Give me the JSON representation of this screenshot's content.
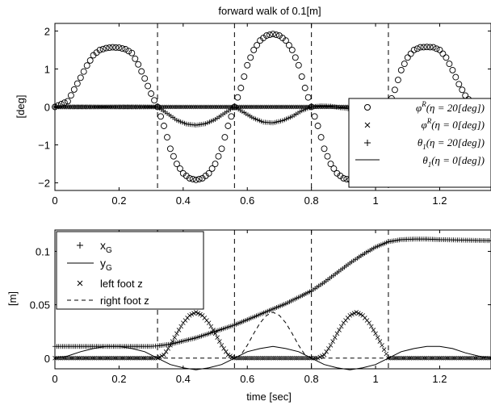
{
  "chart_data": [
    {
      "type": "scatter",
      "title": "forward walk of 0.1[m]",
      "xlabel": "",
      "ylabel": "[deg]",
      "xlim": [
        0,
        1.36
      ],
      "ylim": [
        -2.2,
        2.2
      ],
      "x_ticks": [
        "0",
        "0.2",
        "0.4",
        "0.6",
        "0.8",
        "1",
        "1.2"
      ],
      "x_tick_values": [
        0,
        0.2,
        0.4,
        0.6,
        0.8,
        1.0,
        1.2
      ],
      "y_ticks": [
        "2",
        "1",
        "0",
        "−1",
        "−2"
      ],
      "y_tick_values": [
        2,
        1,
        0,
        -1,
        -2
      ],
      "vlines": [
        0.32,
        0.56,
        0.8,
        1.04
      ],
      "legend_position": "lower-right",
      "series": [
        {
          "name": "φR(η = 20[deg])",
          "marker": "circle",
          "x": [
            0.0,
            0.04,
            0.08,
            0.1,
            0.12,
            0.14,
            0.16,
            0.18,
            0.2,
            0.22,
            0.24,
            0.26,
            0.28,
            0.3,
            0.32,
            0.34,
            0.36,
            0.38,
            0.4,
            0.42,
            0.44,
            0.46,
            0.48,
            0.5,
            0.52,
            0.54,
            0.56,
            0.58,
            0.6,
            0.62,
            0.64,
            0.66,
            0.68,
            0.7,
            0.72,
            0.74,
            0.76,
            0.78,
            0.8,
            0.82,
            0.84,
            0.86,
            0.88,
            0.9,
            0.92,
            0.94,
            0.96,
            0.98,
            1.0,
            1.02,
            1.04,
            1.06,
            1.08,
            1.1,
            1.12,
            1.14,
            1.16,
            1.18,
            1.2,
            1.22,
            1.24,
            1.26,
            1.28,
            1.3,
            1.32,
            1.34
          ],
          "y": [
            0.0,
            0.15,
            0.77,
            1.09,
            1.36,
            1.5,
            1.55,
            1.57,
            1.56,
            1.52,
            1.42,
            1.12,
            0.75,
            0.35,
            0.0,
            -0.5,
            -1.1,
            -1.5,
            -1.75,
            -1.88,
            -1.92,
            -1.88,
            -1.75,
            -1.5,
            -1.1,
            -0.5,
            0.0,
            0.5,
            1.1,
            1.5,
            1.75,
            1.88,
            1.92,
            1.88,
            1.75,
            1.5,
            1.1,
            0.5,
            0.0,
            -0.5,
            -1.1,
            -1.5,
            -1.75,
            -1.88,
            -1.92,
            -1.88,
            -1.75,
            -1.5,
            -1.1,
            -0.5,
            0.0,
            0.45,
            0.97,
            1.3,
            1.5,
            1.57,
            1.58,
            1.57,
            1.5,
            1.3,
            0.97,
            0.6,
            0.3,
            0.1,
            0.02,
            0.0
          ]
        },
        {
          "name": "φR(η = 0[deg])",
          "marker": "x",
          "x": [
            0.0,
            0.34
          ],
          "y": [
            0.0,
            0.0
          ]
        },
        {
          "name": "θ1(η = 20[deg])",
          "marker": "plus",
          "x": [
            0.0,
            0.05,
            0.1,
            0.15,
            0.2,
            0.25,
            0.3,
            0.32,
            0.35,
            0.38,
            0.41,
            0.44,
            0.47,
            0.5,
            0.53,
            0.56,
            0.59,
            0.62,
            0.65,
            0.68,
            0.71,
            0.74,
            0.77,
            0.8,
            0.83,
            0.86,
            0.89,
            0.92,
            0.95,
            0.98,
            1.01,
            1.04,
            1.1,
            1.2,
            1.3,
            1.36
          ],
          "y": [
            0.0,
            0.0,
            0.0,
            0.0,
            0.0,
            0.0,
            0.0,
            0.0,
            -0.17,
            -0.35,
            -0.45,
            -0.48,
            -0.44,
            -0.33,
            -0.16,
            0.0,
            -0.15,
            -0.3,
            -0.4,
            -0.42,
            -0.36,
            -0.25,
            -0.1,
            0.0,
            0.03,
            0.02,
            -0.02,
            -0.05,
            -0.03,
            0.0,
            0.01,
            0.0,
            0.0,
            0.0,
            0.0,
            0.0
          ]
        },
        {
          "name": "θ1(η = 0[deg])",
          "marker": "line",
          "x": [
            0.0,
            1.36
          ],
          "y": [
            0.0,
            0.0
          ]
        }
      ]
    },
    {
      "type": "scatter",
      "title": "",
      "xlabel": "time [sec]",
      "ylabel": "[m]",
      "xlim": [
        0,
        1.36
      ],
      "ylim": [
        -0.01,
        0.12
      ],
      "x_ticks": [
        "0",
        "0.2",
        "0.4",
        "0.6",
        "0.8",
        "1",
        "1.2"
      ],
      "x_tick_values": [
        0,
        0.2,
        0.4,
        0.6,
        0.8,
        1.0,
        1.2
      ],
      "y_ticks": [
        "0.1",
        "0.05",
        "0"
      ],
      "y_tick_values": [
        0.1,
        0.05,
        0
      ],
      "vlines": [
        0.32,
        0.56,
        0.8,
        1.04
      ],
      "legend_position": "upper-left",
      "series": [
        {
          "name": "x",
          "name_subscript": "G",
          "marker": "plus",
          "x": [
            0.0,
            0.1,
            0.2,
            0.3,
            0.32,
            0.36,
            0.4,
            0.44,
            0.48,
            0.52,
            0.56,
            0.6,
            0.64,
            0.68,
            0.72,
            0.76,
            0.8,
            0.84,
            0.88,
            0.92,
            0.96,
            1.0,
            1.04,
            1.08,
            1.12,
            1.16,
            1.2,
            1.28,
            1.36
          ],
          "y": [
            0.011,
            0.011,
            0.011,
            0.011,
            0.0115,
            0.013,
            0.016,
            0.019,
            0.023,
            0.027,
            0.031,
            0.036,
            0.041,
            0.046,
            0.051,
            0.057,
            0.063,
            0.071,
            0.08,
            0.089,
            0.097,
            0.104,
            0.109,
            0.111,
            0.1115,
            0.1115,
            0.111,
            0.1105,
            0.11
          ]
        },
        {
          "name": "y",
          "name_subscript": "G",
          "marker": "line",
          "x": [
            0.0,
            0.04,
            0.08,
            0.12,
            0.16,
            0.2,
            0.24,
            0.28,
            0.32,
            0.36,
            0.4,
            0.44,
            0.48,
            0.52,
            0.56,
            0.6,
            0.64,
            0.68,
            0.72,
            0.76,
            0.8,
            0.84,
            0.88,
            0.92,
            0.96,
            1.0,
            1.04,
            1.08,
            1.12,
            1.16,
            1.2,
            1.24,
            1.28,
            1.32,
            1.36
          ],
          "y": [
            0.0,
            0.002,
            0.006,
            0.009,
            0.011,
            0.011,
            0.009,
            0.006,
            0.0,
            -0.006,
            -0.009,
            -0.011,
            -0.009,
            -0.006,
            0.0,
            0.006,
            0.009,
            0.011,
            0.009,
            0.006,
            0.0,
            -0.006,
            -0.009,
            -0.011,
            -0.009,
            -0.006,
            0.0,
            0.006,
            0.009,
            0.011,
            0.011,
            0.009,
            0.005,
            0.002,
            0.0
          ]
        },
        {
          "name": "left foot z",
          "marker": "x",
          "x": [
            0.0,
            0.1,
            0.2,
            0.3,
            0.32,
            0.34,
            0.36,
            0.38,
            0.4,
            0.42,
            0.44,
            0.46,
            0.48,
            0.5,
            0.52,
            0.54,
            0.56,
            0.6,
            0.7,
            0.8,
            0.82,
            0.84,
            0.86,
            0.88,
            0.9,
            0.92,
            0.94,
            0.96,
            0.98,
            1.0,
            1.02,
            1.04,
            1.1,
            1.2,
            1.3,
            1.36
          ],
          "y": [
            0.0,
            0.0,
            0.0,
            0.0,
            0.0,
            0.003,
            0.012,
            0.023,
            0.033,
            0.04,
            0.043,
            0.04,
            0.033,
            0.023,
            0.012,
            0.003,
            0.0,
            0.0,
            0.0,
            0.0,
            0.0,
            0.003,
            0.012,
            0.023,
            0.033,
            0.04,
            0.043,
            0.04,
            0.033,
            0.023,
            0.012,
            0.0,
            0.0,
            0.0,
            0.0,
            0.0
          ]
        },
        {
          "name": "right foot z",
          "marker": "dashed",
          "x": [
            0.0,
            0.56,
            0.58,
            0.6,
            0.62,
            0.64,
            0.66,
            0.68,
            0.7,
            0.72,
            0.74,
            0.76,
            0.78,
            0.8,
            1.36
          ],
          "y": [
            0.0,
            0.0,
            0.003,
            0.012,
            0.023,
            0.033,
            0.04,
            0.043,
            0.04,
            0.033,
            0.023,
            0.012,
            0.003,
            0.0,
            0.0
          ]
        }
      ]
    }
  ]
}
